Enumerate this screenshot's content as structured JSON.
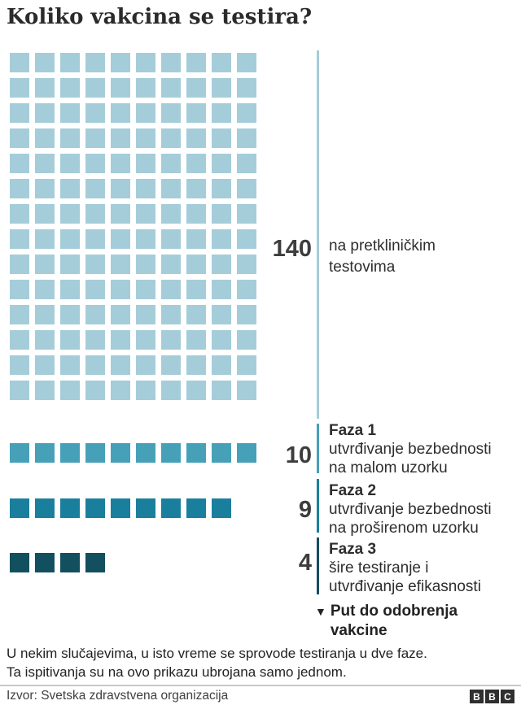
{
  "title": "Koliko vakcina se testira?",
  "chart_data": {
    "type": "waffle",
    "title": "Koliko vakcina se testira?",
    "columns_per_row": 10,
    "series": [
      {
        "name": "na pretkliničkim testovima",
        "value": 140,
        "color": "#a5cdd9"
      },
      {
        "name": "Faza 1 – utvrđivanje bezbednosti na malom uzorku",
        "value": 10,
        "color": "#46a1b8"
      },
      {
        "name": "Faza 2 – utvrđivanje bezbednosti na proširenom uzorku",
        "value": 9,
        "color": "#1a7f9d"
      },
      {
        "name": "Faza 3 – šire testiranje i utvrđivanje efikasnosti",
        "value": 4,
        "color": "#124f5f"
      }
    ],
    "annotation": "Put do odobrenja vakcine",
    "legend_position": "right",
    "grid": false
  },
  "sections": {
    "preclinical": {
      "line1": "na pretkliničkim",
      "line2": "testovima"
    },
    "faza1": {
      "title": "Faza 1",
      "line1": "utvrđivanje bezbednosti",
      "line2": "na malom uzorku"
    },
    "faza2": {
      "title": "Faza 2",
      "line1": "utvrđivanje bezbednosti",
      "line2": "na proširenom uzorku"
    },
    "faza3": {
      "title": "Faza 3",
      "line1": "šire testiranje i",
      "line2": "utvrđivanje efikasnosti"
    }
  },
  "approval": {
    "arrow": "▼",
    "line1": "Put do odobrenja",
    "line2": "vakcine"
  },
  "footnote": {
    "line1": "U nekim slučajevima, u isto vreme se sprovode testiranja u dve faze.",
    "line2": "Ta ispitivanja su na ovo prikazu ubrojana samo jednom."
  },
  "source": {
    "label": "Izvor: Svetska zdravstvena organizacija"
  },
  "logo": {
    "b1": "B",
    "b2": "B",
    "b3": "C",
    "block_color": "#2f2f2f"
  },
  "colors": {
    "preclinical": "#a5cdd9",
    "faza1": "#46a1b8",
    "faza2": "#1a7f9d",
    "faza3": "#124f5f",
    "text_dark": "#2b2b2b",
    "rule": "#c9c9c9"
  }
}
